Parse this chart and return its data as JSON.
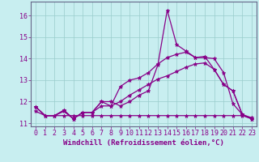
{
  "bg_color": "#c8eef0",
  "grid_color": "#99cccc",
  "line_color": "#880088",
  "xlabel": "Windchill (Refroidissement éolien,°C)",
  "xlim": [
    -0.5,
    23.5
  ],
  "ylim": [
    10.85,
    16.65
  ],
  "yticks": [
    11,
    12,
    13,
    14,
    15,
    16
  ],
  "xticks": [
    0,
    1,
    2,
    3,
    4,
    5,
    6,
    7,
    8,
    9,
    10,
    11,
    12,
    13,
    14,
    15,
    16,
    17,
    18,
    19,
    20,
    21,
    22,
    23
  ],
  "series": [
    [
      11.75,
      11.35,
      11.35,
      11.6,
      11.2,
      11.5,
      11.5,
      12.0,
      12.0,
      11.8,
      12.0,
      12.3,
      12.5,
      13.7,
      16.25,
      14.65,
      14.35,
      14.05,
      14.05,
      14.0,
      13.35,
      11.9,
      11.4,
      11.25
    ],
    [
      11.75,
      11.35,
      11.35,
      11.6,
      11.2,
      11.5,
      11.5,
      12.0,
      11.8,
      12.7,
      13.0,
      13.1,
      13.35,
      13.75,
      14.05,
      14.2,
      14.3,
      14.05,
      14.1,
      13.5,
      12.8,
      12.5,
      11.4,
      11.2
    ],
    [
      11.75,
      11.35,
      11.35,
      11.55,
      11.2,
      11.5,
      11.5,
      11.8,
      11.8,
      12.0,
      12.3,
      12.55,
      12.8,
      13.05,
      13.2,
      13.4,
      13.6,
      13.75,
      13.8,
      13.5,
      12.8,
      12.5,
      11.4,
      11.2
    ],
    [
      11.55,
      11.35,
      11.35,
      11.35,
      11.35,
      11.35,
      11.35,
      11.35,
      11.35,
      11.35,
      11.35,
      11.35,
      11.35,
      11.35,
      11.35,
      11.35,
      11.35,
      11.35,
      11.35,
      11.35,
      11.35,
      11.35,
      11.35,
      11.2
    ]
  ],
  "marker": "*",
  "markersize": 3.5,
  "linewidth": 0.9,
  "tick_fontsize": 6.0,
  "xlabel_fontsize": 6.5,
  "spine_color": "#666688"
}
